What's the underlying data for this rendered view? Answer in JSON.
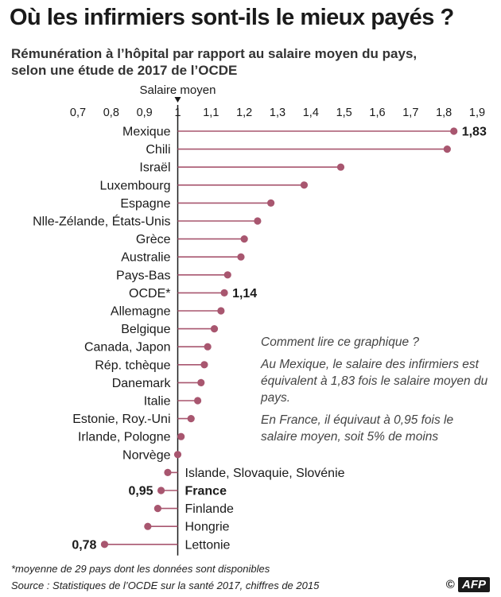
{
  "header": {
    "title": "Où les infirmiers sont-ils le mieux payés ?",
    "subtitle_line1": "Rémunération à l’hôpital par rapport au salaire moyen du pays,",
    "subtitle_line2": "selon une étude de 2017 de l’OCDE"
  },
  "chart_data": {
    "type": "lollipop",
    "reference_label": "Salaire moyen",
    "reference_value": 1,
    "xlim": [
      0.7,
      1.9
    ],
    "xticks": [
      "0,7",
      "0,8",
      "0,9",
      "1",
      "1,1",
      "1,2",
      "1,3",
      "1,4",
      "1,5",
      "1,6",
      "1,7",
      "1,8",
      "1,9"
    ],
    "categories": [
      "Mexique",
      "Chili",
      "Israël",
      "Luxembourg",
      "Espagne",
      "Nlle-Zélande, États-Unis",
      "Grèce",
      "Australie",
      "Pays-Bas",
      "OCDE*",
      "Allemagne",
      "Belgique",
      "Canada, Japon",
      "Rép. tchèque",
      "Danemark",
      "Italie",
      "Estonie, Roy.-Uni",
      "Irlande, Pologne",
      "Norvège",
      "Islande, Slovaquie, Slovénie",
      "France",
      "Finlande",
      "Hongrie",
      "Lettonie"
    ],
    "values": [
      1.83,
      1.81,
      1.49,
      1.38,
      1.28,
      1.24,
      1.2,
      1.19,
      1.15,
      1.14,
      1.13,
      1.11,
      1.09,
      1.08,
      1.07,
      1.06,
      1.04,
      1.01,
      1.0,
      0.97,
      0.95,
      0.94,
      0.91,
      0.78
    ],
    "value_labels": {
      "Mexique": "1,83",
      "OCDE*": "1,14",
      "France": "0,95",
      "Lettonie": "0,78"
    },
    "highlight": [
      "France",
      "OCDE*"
    ],
    "colors": {
      "marker": "#a8566f",
      "axis": "#1a1a1a",
      "text": "#1a1a1a"
    }
  },
  "note": {
    "heading": "Comment lire ce graphique ?",
    "para1": "Au Mexique, le salaire des infirmiers est équivalent à 1,83 fois le salaire moyen du pays.",
    "para2": "En France, il équivaut à 0,95 fois le salaire moyen, soit 5% de moins"
  },
  "footer": {
    "footnote": "*moyenne de 29 pays dont les données sont disponibles",
    "source": "Source : Statistiques de l’OCDE sur la santé 2017, chiffres de 2015",
    "copyright": "©",
    "logo": "AFP"
  }
}
